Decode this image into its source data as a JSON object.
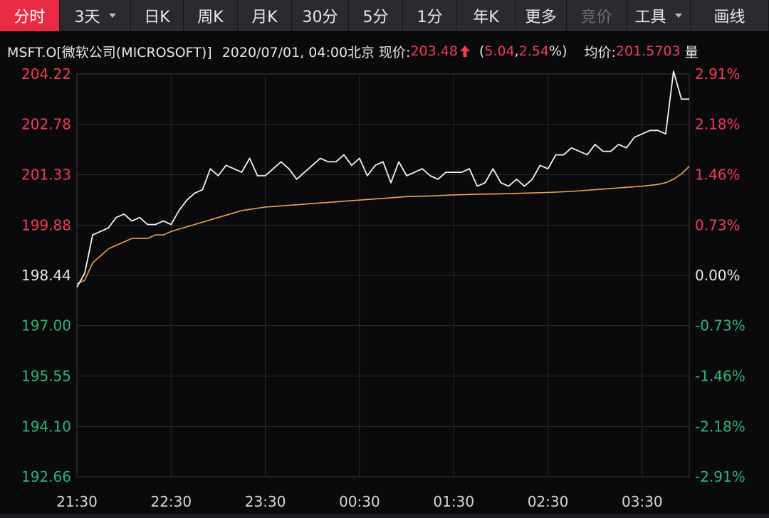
{
  "toolbar": {
    "tabs": [
      {
        "label": "分时",
        "state": "active"
      },
      {
        "label": "3天",
        "state": "normal",
        "dropdown": true
      },
      {
        "label": "日K",
        "state": "normal"
      },
      {
        "label": "周K",
        "state": "normal"
      },
      {
        "label": "月K",
        "state": "normal"
      },
      {
        "label": "30分",
        "state": "normal"
      },
      {
        "label": "5分",
        "state": "normal"
      },
      {
        "label": "1分",
        "state": "normal"
      },
      {
        "label": "年K",
        "state": "normal"
      },
      {
        "label": "更多",
        "state": "normal"
      },
      {
        "label": "竞价",
        "state": "disabled"
      },
      {
        "label": "工具",
        "state": "normal",
        "dropdown": true
      },
      {
        "label": "画线",
        "state": "normal"
      }
    ]
  },
  "quote": {
    "symbol": "MSFT.O[微软公司(MICROSOFT)]",
    "datetime": "2020/07/01, 04:00北京",
    "price_label": "现价:",
    "price": "203.48",
    "change_open": "(",
    "change": "5.04",
    "change_sep": ", ",
    "change_pct": "2.54",
    "change_close": "%)",
    "avg_label": "均价:",
    "avg": "201.5703",
    "trailing": "量"
  },
  "colors": {
    "up": "#f23c50",
    "down": "#2bb673",
    "neutral": "#e6e6e6",
    "price_line": "#f2f2f2",
    "avg_line": "#f0a050",
    "grid": "#2a2a2a",
    "active_tab": "#ea2b44"
  },
  "chart_data": {
    "type": "line",
    "title": "",
    "xlabel": "",
    "ylabel": "",
    "x_ticks": [
      "21:30",
      "22:30",
      "23:30",
      "00:30",
      "01:30",
      "02:30",
      "03:30"
    ],
    "x_range": [
      "21:30",
      "04:00"
    ],
    "ylim": [
      192.66,
      204.22
    ],
    "y_ticks_left": [
      "204.22",
      "202.78",
      "201.33",
      "199.88",
      "198.44",
      "197.00",
      "195.55",
      "194.10",
      "192.66"
    ],
    "y_ticks_right": [
      "2.91%",
      "2.18%",
      "1.46%",
      "0.73%",
      "0.00%",
      "-0.73%",
      "-1.46%",
      "-2.18%",
      "-2.91%"
    ],
    "reference_price": 198.44,
    "grid": true,
    "series": [
      {
        "key": "price",
        "x": [
          "21:30",
          "21:35",
          "21:40",
          "21:45",
          "21:50",
          "21:55",
          "22:00",
          "22:05",
          "22:10",
          "22:15",
          "22:20",
          "22:25",
          "22:30",
          "22:35",
          "22:40",
          "22:45",
          "22:50",
          "22:55",
          "23:00",
          "23:05",
          "23:10",
          "23:15",
          "23:20",
          "23:25",
          "23:30",
          "23:35",
          "23:40",
          "23:45",
          "23:50",
          "23:55",
          "00:00",
          "00:05",
          "00:10",
          "00:15",
          "00:20",
          "00:25",
          "00:30",
          "00:35",
          "00:40",
          "00:45",
          "00:50",
          "00:55",
          "01:00",
          "01:05",
          "01:10",
          "01:15",
          "01:20",
          "01:25",
          "01:30",
          "01:35",
          "01:40",
          "01:45",
          "01:50",
          "01:55",
          "02:00",
          "02:05",
          "02:10",
          "02:15",
          "02:20",
          "02:25",
          "02:30",
          "02:35",
          "02:40",
          "02:45",
          "02:50",
          "02:55",
          "03:00",
          "03:05",
          "03:10",
          "03:15",
          "03:20",
          "03:25",
          "03:30",
          "03:35",
          "03:40",
          "03:45",
          "03:50",
          "03:55",
          "04:00"
        ],
        "values": [
          198.1,
          198.5,
          199.6,
          199.7,
          199.8,
          200.1,
          200.2,
          200.0,
          200.1,
          199.9,
          199.9,
          200.0,
          199.9,
          200.3,
          200.6,
          200.8,
          200.9,
          201.5,
          201.3,
          201.6,
          201.5,
          201.4,
          201.8,
          201.3,
          201.3,
          201.5,
          201.7,
          201.5,
          201.2,
          201.4,
          201.6,
          201.8,
          201.7,
          201.7,
          201.9,
          201.6,
          201.8,
          201.3,
          201.6,
          201.7,
          201.1,
          201.7,
          201.3,
          201.4,
          201.5,
          201.3,
          201.2,
          201.4,
          201.4,
          201.4,
          201.5,
          201.0,
          201.1,
          201.5,
          201.1,
          201.0,
          201.2,
          201.0,
          201.2,
          201.6,
          201.5,
          201.9,
          201.9,
          202.1,
          202.0,
          201.9,
          202.2,
          202.0,
          202.0,
          202.2,
          202.1,
          202.4,
          202.5,
          202.6,
          202.6,
          202.5,
          204.3,
          203.5,
          203.5
        ]
      },
      {
        "key": "average",
        "x": [
          "21:30",
          "21:35",
          "21:40",
          "21:45",
          "21:50",
          "21:55",
          "22:00",
          "22:05",
          "22:10",
          "22:15",
          "22:20",
          "22:25",
          "22:30",
          "22:45",
          "23:00",
          "23:15",
          "23:30",
          "23:45",
          "00:00",
          "00:15",
          "00:30",
          "00:45",
          "01:00",
          "01:15",
          "01:30",
          "01:45",
          "02:00",
          "02:15",
          "02:30",
          "02:45",
          "03:00",
          "03:15",
          "03:30",
          "03:40",
          "03:45",
          "03:50",
          "03:55",
          "04:00"
        ],
        "values": [
          198.2,
          198.3,
          198.8,
          199.0,
          199.2,
          199.3,
          199.4,
          199.5,
          199.5,
          199.5,
          199.6,
          199.6,
          199.7,
          199.9,
          200.1,
          200.3,
          200.4,
          200.45,
          200.5,
          200.55,
          200.6,
          200.65,
          200.7,
          200.72,
          200.75,
          200.77,
          200.78,
          200.8,
          200.82,
          200.85,
          200.9,
          200.95,
          201.0,
          201.05,
          201.1,
          201.2,
          201.35,
          201.57
        ]
      }
    ]
  }
}
